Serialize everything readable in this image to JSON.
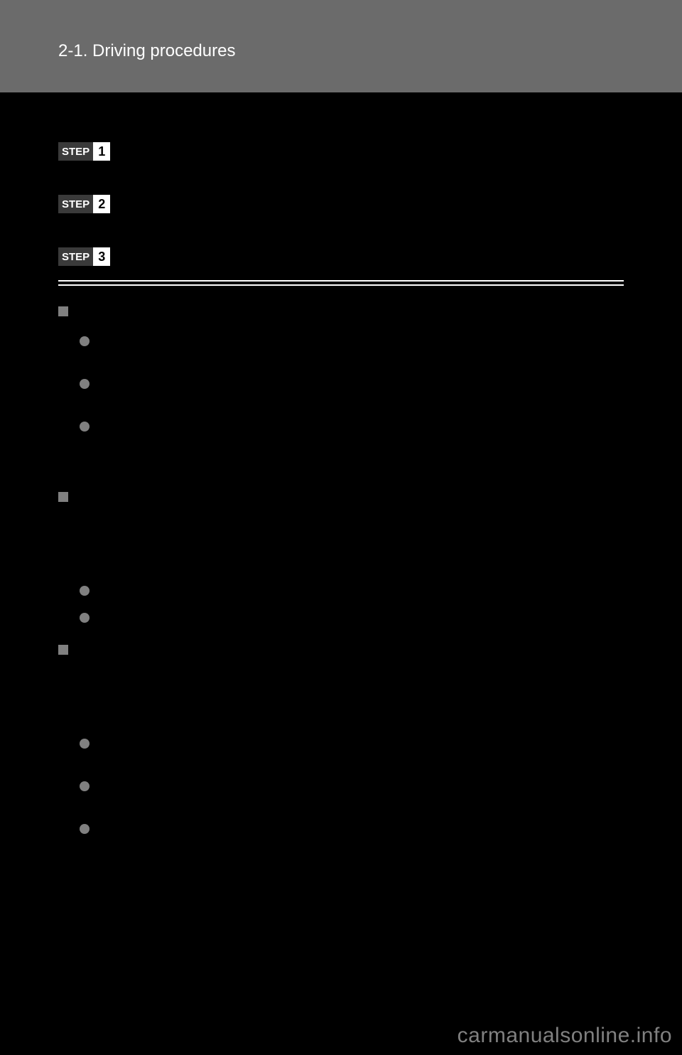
{
  "header": {
    "section_title": "2-1. Driving procedures"
  },
  "steps": [
    {
      "label": "STEP",
      "number": "1",
      "top_margin": 70
    },
    {
      "label": "STEP",
      "number": "2",
      "top_margin": 48
    },
    {
      "label": "STEP",
      "number": "3",
      "top_margin": 48
    }
  ],
  "sections": [
    {
      "type": "square",
      "top_margin": 26,
      "bullets": [
        {
          "top_margin": 28
        },
        {
          "top_margin": 46
        },
        {
          "top_margin": 46
        }
      ]
    },
    {
      "type": "square",
      "top_margin": 82,
      "bullets": [
        {
          "top_margin": 118
        },
        {
          "top_margin": 24
        }
      ]
    },
    {
      "type": "square",
      "top_margin": 28,
      "bullets": [
        {
          "top_margin": 118
        },
        {
          "top_margin": 46
        },
        {
          "top_margin": 46
        }
      ]
    }
  ],
  "footer": {
    "watermark": "carmanualsonline.info"
  },
  "colors": {
    "background": "#000000",
    "header_bg": "#6b6b6b",
    "header_text": "#ffffff",
    "step_badge_bg": "#3a3a3a",
    "step_num_bg": "#ffffff",
    "bullet": "#808080",
    "watermark": "#808080"
  }
}
